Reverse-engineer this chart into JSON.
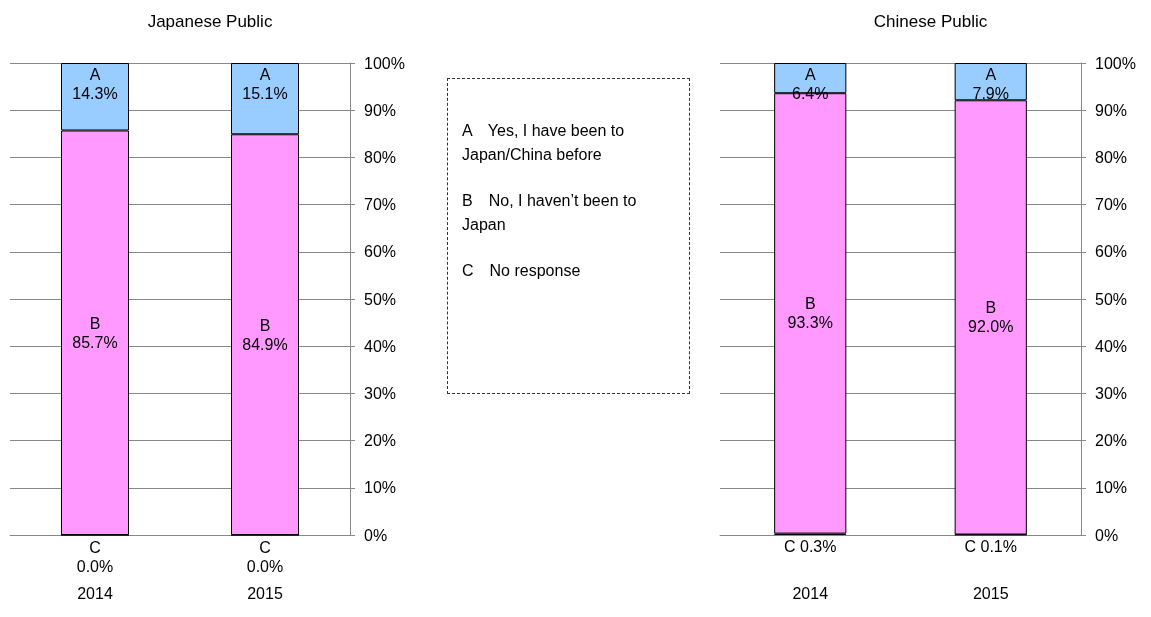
{
  "chart_data": [
    {
      "type": "bar",
      "title": "Japanese Public",
      "categories": [
        "2014",
        "2015"
      ],
      "stacked": true,
      "grid": "y",
      "ylim": [
        0,
        100
      ],
      "yticks": [
        {
          "value": 0,
          "label": "0%"
        },
        {
          "value": 10,
          "label": "10%"
        },
        {
          "value": 20,
          "label": "20%"
        },
        {
          "value": 30,
          "label": "30%"
        },
        {
          "value": 40,
          "label": "40%"
        },
        {
          "value": 50,
          "label": "50%"
        },
        {
          "value": 60,
          "label": "60%"
        },
        {
          "value": 70,
          "label": "70%"
        },
        {
          "value": 80,
          "label": "80%"
        },
        {
          "value": 90,
          "label": "90%"
        },
        {
          "value": 100,
          "label": "100%"
        }
      ],
      "series": [
        {
          "color": "#ff99ff",
          "values": [
            0.0,
            0.0
          ],
          "value_labels": [
            "C\n0.0%",
            "C\n0.0%"
          ]
        },
        {
          "color": "#ff99ff",
          "values": [
            85.7,
            84.9
          ],
          "value_labels": [
            "B\n85.7%",
            "B\n84.9%"
          ]
        },
        {
          "color": "#99ccff",
          "values": [
            14.3,
            15.1
          ],
          "value_labels": [
            "A\n14.3%",
            "A\n15.1%"
          ]
        }
      ]
    },
    {
      "type": "other",
      "annotations": [
        "A　Yes, I have been to Japan/China before",
        "B　No, I haven’t been to Japan",
        "C　No response"
      ]
    },
    {
      "type": "bar",
      "title": "Chinese Public",
      "categories": [
        "2014",
        "2015"
      ],
      "stacked": true,
      "grid": "y",
      "ylim": [
        0,
        100
      ],
      "yticks": [
        {
          "value": 0,
          "label": "0%"
        },
        {
          "value": 10,
          "label": "10%"
        },
        {
          "value": 20,
          "label": "20%"
        },
        {
          "value": 30,
          "label": "30%"
        },
        {
          "value": 40,
          "label": "40%"
        },
        {
          "value": 50,
          "label": "50%"
        },
        {
          "value": 60,
          "label": "60%"
        },
        {
          "value": 70,
          "label": "70%"
        },
        {
          "value": 80,
          "label": "80%"
        },
        {
          "value": 90,
          "label": "90%"
        },
        {
          "value": 100,
          "label": "100%"
        }
      ],
      "series": [
        {
          "color": "#ff99ff",
          "values": [
            0.3,
            0.1
          ],
          "value_labels": [
            "C 0.3%",
            "C 0.1%"
          ]
        },
        {
          "color": "#ff99ff",
          "values": [
            93.3,
            92.0
          ],
          "value_labels": [
            "B\n93.3%",
            "B\n92.0%"
          ]
        },
        {
          "color": "#99ccff",
          "values": [
            6.4,
            7.9
          ],
          "value_labels": [
            "A\n6.4%",
            "A\n7.9%"
          ]
        }
      ]
    }
  ]
}
